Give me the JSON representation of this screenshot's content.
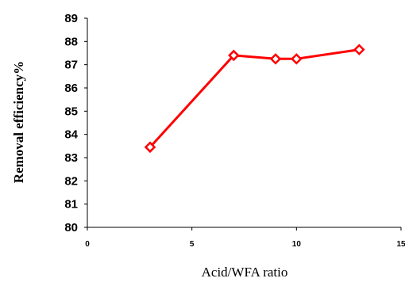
{
  "chart_data": {
    "type": "line",
    "xlabel": "Acid/WFA ratio",
    "ylabel": "Removal  efficiency%",
    "xlim": [
      0,
      15
    ],
    "ylim": [
      80,
      89
    ],
    "x_ticks": [
      "0",
      "5",
      "10",
      "15"
    ],
    "y_ticks": [
      "80",
      "81",
      "82",
      "83",
      "84",
      "85",
      "86",
      "87",
      "88",
      "89"
    ],
    "grid": false,
    "series": [
      {
        "color": "#ff0000",
        "marker": "diamond",
        "x": [
          3,
          7,
          9,
          10,
          13
        ],
        "y": [
          83.45,
          87.4,
          87.25,
          87.25,
          87.65
        ]
      }
    ]
  }
}
